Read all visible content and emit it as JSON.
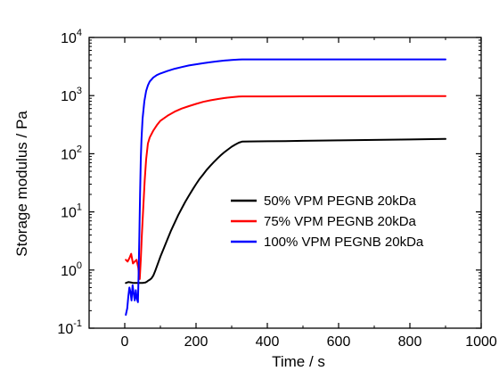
{
  "chart_data": {
    "type": "line",
    "title": "",
    "xlabel": "Time / s",
    "ylabel": "Storage modulus / Pa",
    "xlim": [
      -100,
      1000
    ],
    "ylim": [
      0.1,
      10000
    ],
    "yscale": "log",
    "grid": false,
    "legend_position": "center-right",
    "x_ticks": [
      {
        "value": 0,
        "label": "0"
      },
      {
        "value": 200,
        "label": "200"
      },
      {
        "value": 400,
        "label": "400"
      },
      {
        "value": 600,
        "label": "600"
      },
      {
        "value": 800,
        "label": "800"
      },
      {
        "value": 1000,
        "label": "1000"
      }
    ],
    "y_ticks": [
      {
        "value": 0.1,
        "base": "10",
        "exp": "-1"
      },
      {
        "value": 1,
        "base": "10",
        "exp": "0"
      },
      {
        "value": 10,
        "base": "10",
        "exp": "1"
      },
      {
        "value": 100,
        "base": "10",
        "exp": "2"
      },
      {
        "value": 1000,
        "base": "10",
        "exp": "3"
      },
      {
        "value": 10000,
        "base": "10",
        "exp": "4"
      }
    ],
    "series": [
      {
        "name": "50% VPM PEGNB 20kDa",
        "color": "#000000",
        "x": [
          3,
          10,
          18,
          25,
          32,
          40,
          50,
          58,
          62,
          66,
          70,
          75,
          80,
          85,
          90,
          95,
          100,
          110,
          120,
          130,
          140,
          150,
          160,
          170,
          180,
          190,
          200,
          210,
          220,
          230,
          240,
          250,
          260,
          270,
          280,
          290,
          300,
          310,
          320,
          330,
          350,
          400,
          450,
          500,
          600,
          700,
          800,
          900
        ],
        "y": [
          0.6,
          0.62,
          0.61,
          0.6,
          0.6,
          0.6,
          0.6,
          0.61,
          0.63,
          0.66,
          0.68,
          0.72,
          0.8,
          0.95,
          1.15,
          1.4,
          1.7,
          2.4,
          3.4,
          4.8,
          6.5,
          8.8,
          11.5,
          15,
          19,
          24,
          30,
          37,
          44,
          53,
          62,
          72,
          83,
          95,
          107,
          119,
          132,
          144,
          155,
          162,
          163,
          164,
          165,
          167,
          170,
          173,
          176,
          180
        ]
      },
      {
        "name": "75% VPM PEGNB 20kDa",
        "color": "#ff0000",
        "x": [
          3,
          8,
          13,
          18,
          23,
          28,
          33,
          38,
          40,
          42,
          45,
          48,
          52,
          56,
          60,
          65,
          70,
          80,
          90,
          100,
          120,
          140,
          160,
          180,
          200,
          220,
          240,
          260,
          280,
          300,
          320,
          330,
          400,
          500,
          600,
          700,
          800,
          900
        ],
        "y": [
          1.5,
          1.4,
          1.6,
          1.9,
          1.3,
          1.4,
          1.5,
          1.1,
          0.8,
          0.7,
          1.5,
          4,
          12,
          35,
          80,
          150,
          190,
          250,
          310,
          370,
          450,
          530,
          600,
          660,
          720,
          780,
          830,
          870,
          910,
          940,
          965,
          970,
          970,
          972,
          974,
          976,
          978,
          980
        ]
      },
      {
        "name": "100% VPM PEGNB 20kDa",
        "color": "#0000ff",
        "x": [
          3,
          7,
          10,
          13,
          16,
          19,
          22,
          25,
          28,
          31,
          34,
          37,
          39,
          41,
          43,
          45,
          47,
          50,
          55,
          60,
          65,
          70,
          80,
          90,
          100,
          120,
          140,
          160,
          180,
          200,
          220,
          240,
          260,
          280,
          300,
          320,
          330,
          400,
          500,
          600,
          700,
          800,
          900
        ],
        "y": [
          0.17,
          0.22,
          0.35,
          0.5,
          0.42,
          0.3,
          0.55,
          0.4,
          0.3,
          0.45,
          0.32,
          0.28,
          0.9,
          4,
          20,
          80,
          180,
          400,
          800,
          1200,
          1500,
          1750,
          2050,
          2250,
          2400,
          2650,
          2900,
          3100,
          3300,
          3450,
          3600,
          3750,
          3900,
          4000,
          4100,
          4180,
          4200,
          4200,
          4200,
          4200,
          4200,
          4200,
          4200
        ]
      }
    ]
  }
}
